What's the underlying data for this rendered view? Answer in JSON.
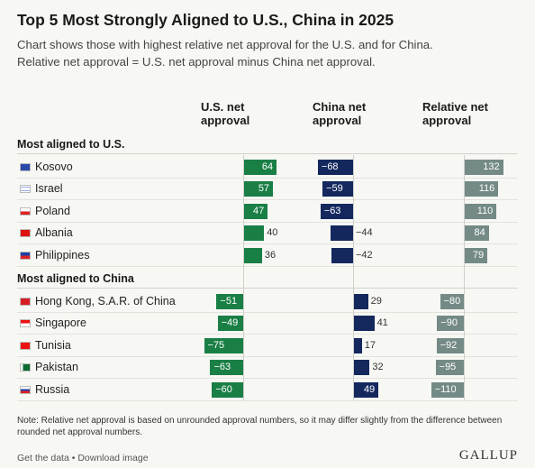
{
  "header": {
    "title": "Top 5 Most Strongly Aligned to U.S., China in 2025",
    "subtitle_line1": "Chart shows those with highest relative net approval for the U.S. and for China.",
    "subtitle_line2": "Relative net approval = U.S. net approval minus China net approval."
  },
  "columns": {
    "us": "U.S. net\napproval",
    "china": "China net\napproval",
    "relative": "Relative net\napproval"
  },
  "colors": {
    "us": "#1a7f45",
    "china": "#14285e",
    "relative": "#748a86"
  },
  "chart_data": {
    "type": "table",
    "groups": [
      {
        "name": "Most aligned to U.S.",
        "rows": [
          {
            "country": "Kosovo",
            "us": 64,
            "china": -68,
            "relative": 132
          },
          {
            "country": "Israel",
            "us": 57,
            "china": -59,
            "relative": 116
          },
          {
            "country": "Poland",
            "us": 47,
            "china": -63,
            "relative": 110
          },
          {
            "country": "Albania",
            "us": 40,
            "china": -44,
            "relative": 84
          },
          {
            "country": "Philippines",
            "us": 36,
            "china": -42,
            "relative": 79
          }
        ]
      },
      {
        "name": "Most aligned to China",
        "rows": [
          {
            "country": "Hong Kong, S.A.R. of China",
            "us": -51,
            "china": 29,
            "relative": -80
          },
          {
            "country": "Singapore",
            "us": -49,
            "china": 41,
            "relative": -90
          },
          {
            "country": "Tunisia",
            "us": -75,
            "china": 17,
            "relative": -92
          },
          {
            "country": "Pakistan",
            "us": -63,
            "china": 32,
            "relative": -95
          },
          {
            "country": "Russia",
            "us": -60,
            "china": 49,
            "relative": -110
          }
        ]
      }
    ]
  },
  "note": "Note: Relative net approval is based on unrounded approval numbers, so it may differ slightly from the difference between rounded net approval numbers.",
  "footer": {
    "get_data": "Get the data",
    "separator": "•",
    "download": "Download image",
    "logo": "GALLUP"
  }
}
